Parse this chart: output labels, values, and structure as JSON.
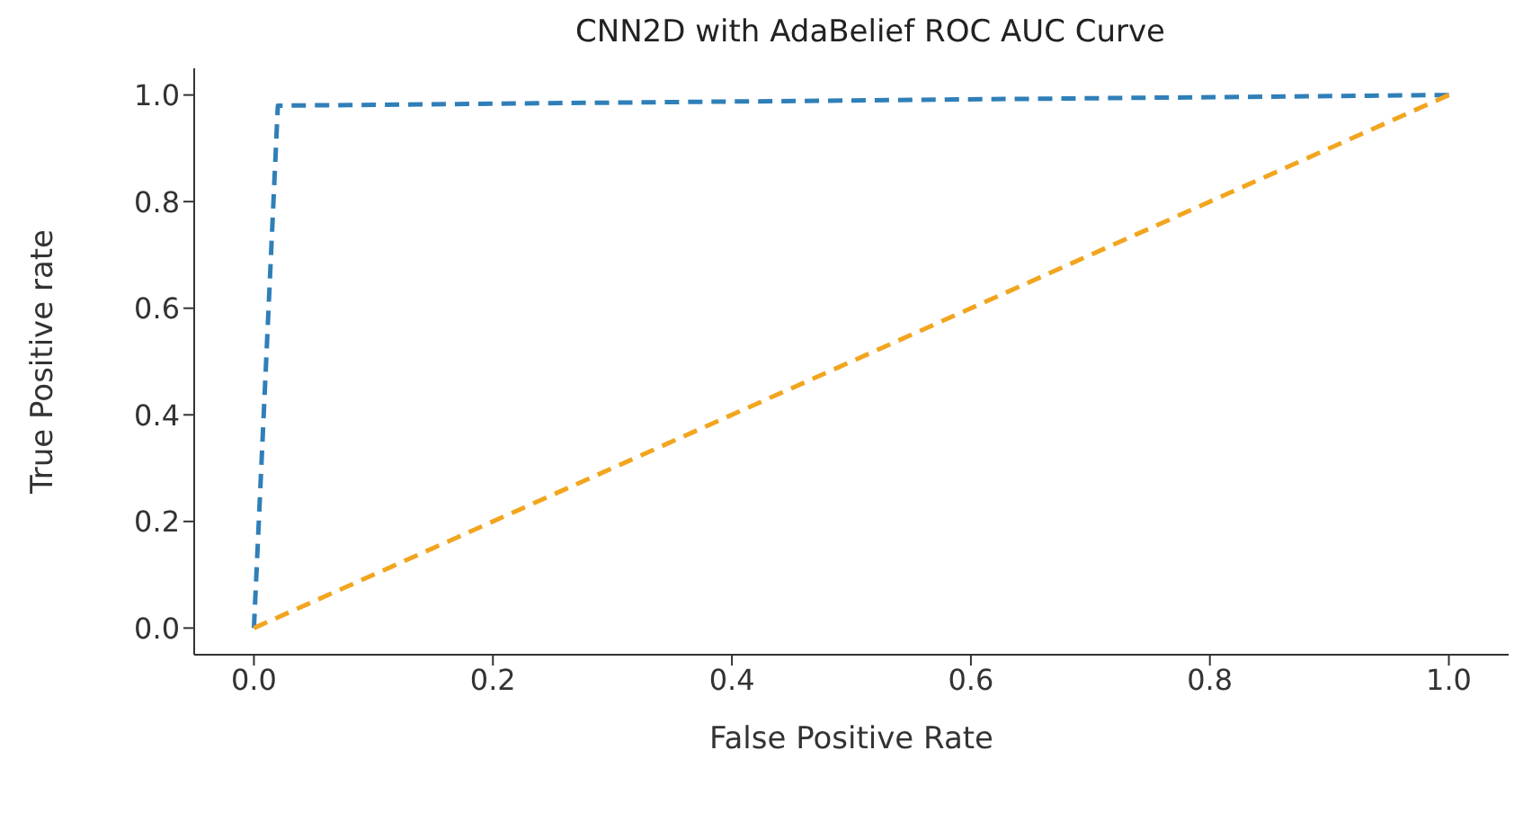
{
  "chart_data": {
    "type": "line",
    "title": "CNN2D with AdaBelief ROC AUC Curve",
    "xlabel": "False Positive Rate",
    "ylabel": "True Positive rate",
    "series": [
      {
        "color": "#2f7fb8",
        "x": [
          0,
          0.02,
          1
        ],
        "values": [
          0,
          0.98,
          1
        ]
      },
      {
        "color": "#f2a51f",
        "x": [
          0,
          1
        ],
        "values": [
          0,
          1
        ]
      }
    ],
    "xlim": [
      -0.05,
      1.05
    ],
    "ylim": [
      -0.05,
      1.05
    ],
    "xticks": [
      {
        "value": 0,
        "label": "0.0"
      },
      {
        "value": 0.2,
        "label": "0.2"
      },
      {
        "value": 0.4,
        "label": "0.4"
      },
      {
        "value": 0.6,
        "label": "0.6"
      },
      {
        "value": 0.8,
        "label": "0.8"
      },
      {
        "value": 1,
        "label": "1.0"
      }
    ],
    "yticks": [
      {
        "value": 0,
        "label": "0.0"
      },
      {
        "value": 0.2,
        "label": "0.2"
      },
      {
        "value": 0.4,
        "label": "0.4"
      },
      {
        "value": 0.6,
        "label": "0.6"
      },
      {
        "value": 0.8,
        "label": "0.8"
      },
      {
        "value": 1,
        "label": "1.0"
      }
    ],
    "grid": false,
    "legend": false,
    "marker": "none",
    "line_style": "dashed"
  }
}
